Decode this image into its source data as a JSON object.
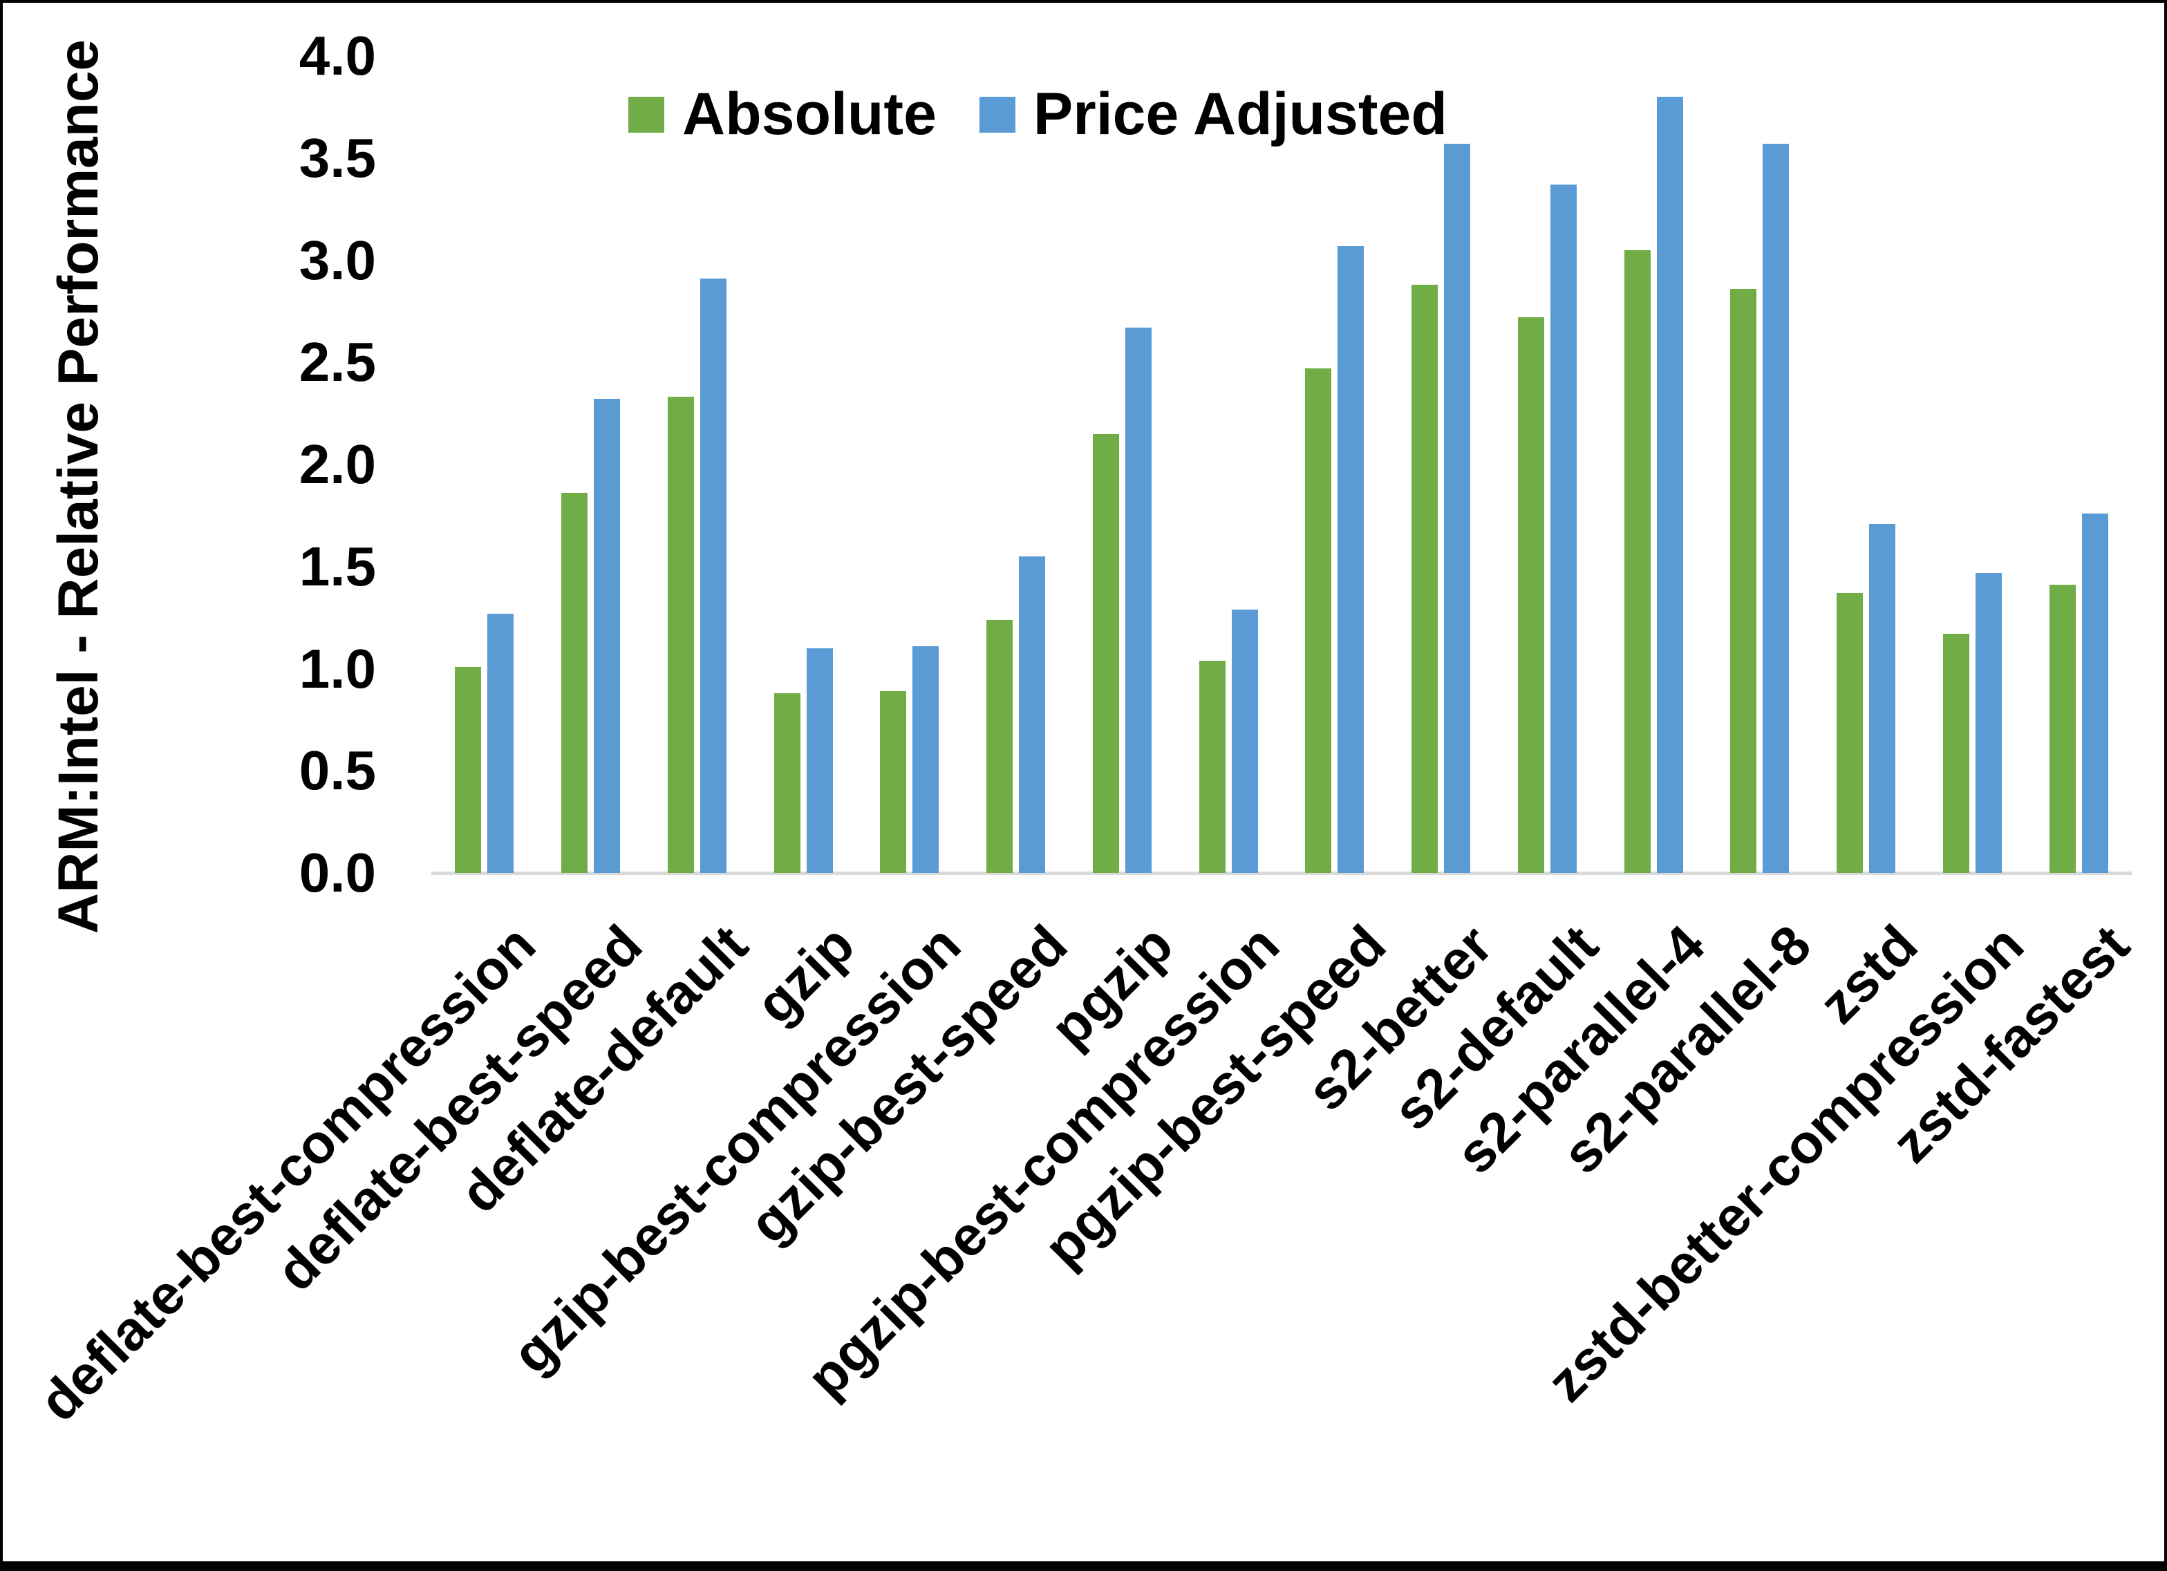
{
  "figure": {
    "background": "#FFFFFF",
    "frame_color": "#000000"
  },
  "chart_data": {
    "type": "bar",
    "title": "",
    "xlabel": "",
    "ylabel": "ARM:Intel - Relative Performance",
    "ylim": [
      0.0,
      4.0
    ],
    "ytick_interval": 0.5,
    "ytick_labels": [
      "0.0",
      "0.5",
      "1.0",
      "1.5",
      "2.0",
      "2.5",
      "3.0",
      "3.5",
      "4.0"
    ],
    "grid": false,
    "legend_position": "top-center",
    "axis_line_color": "#D9D9D9",
    "text_color": "#000000",
    "categories": [
      "deflate-best-compression",
      "deflate-best-speed",
      "deflate-default",
      "gzip",
      "gzip-best-compression",
      "gzip-best-speed",
      "pgzip",
      "pgzip-best-compression",
      "pgzip-best-speed",
      "s2-better",
      "s2-default",
      "s2-parallel-4",
      "s2-parallel-8",
      "zstd",
      "zstd-better-compression",
      "zstd-fastest"
    ],
    "series": [
      {
        "name": "Absolute",
        "color": "#70AD47",
        "values": [
          1.01,
          1.86,
          2.33,
          0.88,
          0.89,
          1.24,
          2.15,
          1.04,
          2.47,
          2.88,
          2.72,
          3.05,
          2.86,
          1.37,
          1.17,
          1.41
        ]
      },
      {
        "name": "Price Adjusted",
        "color": "#5B9BD5",
        "values": [
          1.27,
          2.32,
          2.91,
          1.1,
          1.11,
          1.55,
          2.67,
          1.29,
          3.07,
          3.57,
          3.37,
          3.8,
          3.57,
          1.71,
          1.47,
          1.76
        ]
      }
    ]
  }
}
